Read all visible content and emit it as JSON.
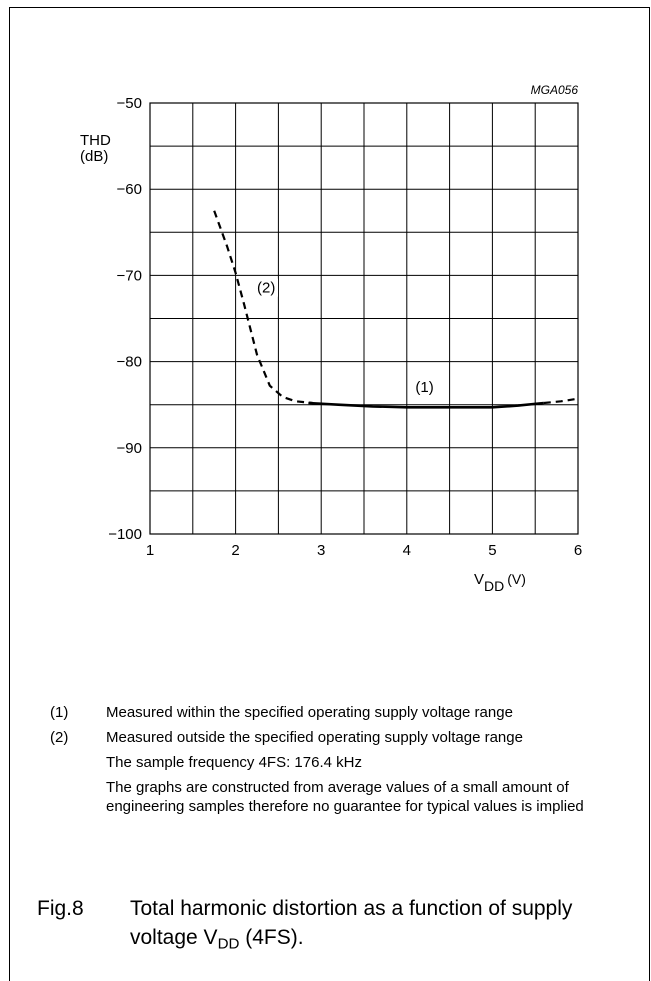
{
  "chart_data": {
    "type": "line",
    "figure_id": "MGA056",
    "ylabel_line1": "THD",
    "ylabel_line2": "(dB)",
    "xlabel_main": "V",
    "xlabel_sub": "DD",
    "xlabel_unit": "(V)",
    "xlim": [
      1,
      6
    ],
    "ylim": [
      -100,
      -50
    ],
    "xticks": [
      1,
      2,
      3,
      4,
      5,
      6
    ],
    "yticks": [
      -50,
      -60,
      -70,
      -80,
      -90,
      -100
    ],
    "ytick_labels": [
      "−50",
      "−60",
      "−70",
      "−80",
      "−90",
      "−100"
    ],
    "grid": true,
    "series": [
      {
        "name": "(2)",
        "style": "dashed",
        "x": [
          1.75,
          1.9,
          2.0,
          2.1,
          2.25,
          2.4,
          2.55,
          2.7,
          2.9
        ],
        "y": [
          -62.5,
          -66.6,
          -69.7,
          -73.4,
          -79.2,
          -82.8,
          -84.1,
          -84.6,
          -84.8
        ]
      },
      {
        "name": "(1)",
        "style": "solid",
        "x": [
          2.85,
          3.2,
          3.6,
          4.0,
          4.5,
          5.0,
          5.3,
          5.6
        ],
        "y": [
          -84.8,
          -85.0,
          -85.2,
          -85.3,
          -85.3,
          -85.3,
          -85.1,
          -84.8
        ]
      },
      {
        "name": "",
        "style": "dashed",
        "x": [
          5.6,
          5.8,
          6.0
        ],
        "y": [
          -84.8,
          -84.6,
          -84.3
        ]
      }
    ],
    "annotations": [
      {
        "text": "(2)",
        "x": 2.25,
        "y": -72.0
      },
      {
        "text": "(1)",
        "x": 4.1,
        "y": -83.5
      }
    ]
  },
  "notes": [
    {
      "num": "(1)",
      "text": "Measured within the specified operating supply voltage range"
    },
    {
      "num": "(2)",
      "text": "Measured outside the specified operating supply voltage range"
    }
  ],
  "paragraphs": [
    "The sample frequency 4FS: 176.4 kHz",
    "The graphs are constructed from average values of a small amount of engineering samples therefore no guarantee for typical values is implied"
  ],
  "caption": {
    "label": "Fig.8",
    "text_before": "Total harmonic distortion as a function of supply voltage V",
    "text_sub": "DD",
    "text_after": " (4FS)."
  }
}
